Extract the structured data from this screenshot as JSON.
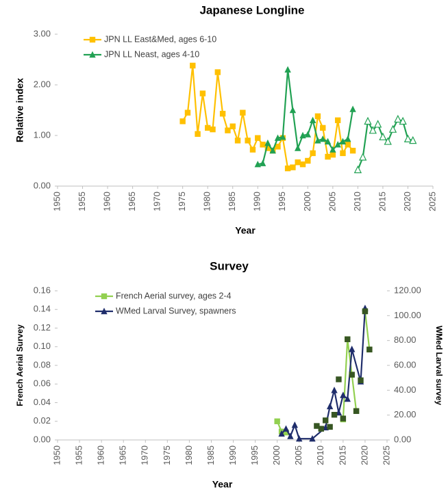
{
  "chart_data": [
    {
      "type": "line",
      "title": "Japanese Longline",
      "xlabel": "Year",
      "ylabel": "Relative index",
      "xlim": [
        1950,
        2025
      ],
      "xticks": [
        1950,
        1955,
        1960,
        1965,
        1970,
        1975,
        1980,
        1985,
        1990,
        1995,
        2000,
        2005,
        2010,
        2015,
        2020,
        2025
      ],
      "ylim": [
        0,
        3
      ],
      "yticks": [
        {
          "value": 0,
          "label": "0.00"
        },
        {
          "value": 1,
          "label": "1.00"
        },
        {
          "value": 2,
          "label": "2.00"
        },
        {
          "value": 3,
          "label": "3.00"
        }
      ],
      "legend": "upper left",
      "series": [
        {
          "name": "JPN LL East&Med, ages 6-10",
          "color": "#ffc000",
          "marker": "square",
          "x": [
            1975,
            1976,
            1977,
            1978,
            1979,
            1980,
            1981,
            1982,
            1983,
            1984,
            1985,
            1986,
            1987,
            1988,
            1989,
            1990,
            1991,
            1992,
            1993,
            1994,
            1995,
            1996,
            1997,
            1998,
            1999,
            2000,
            2001,
            2002,
            2003,
            2004,
            2005,
            2006,
            2007,
            2008,
            2009
          ],
          "values": [
            1.28,
            1.45,
            2.38,
            1.03,
            1.83,
            1.15,
            1.12,
            2.25,
            1.43,
            1.1,
            1.18,
            0.9,
            1.45,
            0.9,
            0.72,
            0.95,
            0.82,
            0.75,
            0.7,
            0.78,
            0.95,
            0.35,
            0.37,
            0.47,
            0.43,
            0.5,
            0.65,
            1.38,
            1.15,
            0.58,
            0.62,
            1.3,
            0.65,
            0.82,
            0.7
          ]
        },
        {
          "name": "JPN LL Neast, ages 4-10",
          "color": "#21a153",
          "marker": "triangle",
          "x": [
            1990,
            1991,
            1992,
            1993,
            1994,
            1995,
            1996,
            1997,
            1998,
            1999,
            2000,
            2001,
            2002,
            2003,
            2004,
            2005,
            2006,
            2007,
            2008,
            2009
          ],
          "values": [
            0.43,
            0.45,
            0.85,
            0.7,
            0.95,
            0.97,
            2.3,
            1.5,
            0.75,
            1.0,
            1.02,
            1.3,
            0.9,
            0.93,
            0.88,
            0.72,
            0.82,
            0.88,
            0.93,
            1.52
          ]
        },
        {
          "color": "#21a153",
          "marker": "triangle-open",
          "x": [
            2010,
            2011,
            2012,
            2013,
            2014,
            2015,
            2016,
            2017,
            2018,
            2019,
            2020,
            2021
          ],
          "values": [
            0.32,
            0.57,
            1.28,
            1.1,
            1.22,
            0.97,
            0.88,
            1.12,
            1.32,
            1.28,
            0.93,
            0.9
          ]
        }
      ]
    },
    {
      "type": "line",
      "title": "Survey",
      "xlabel": "Year",
      "ylabel": "French Aerial Survey",
      "y2label": "WMed Larval survey",
      "xlim": [
        1950,
        2025
      ],
      "xticks": [
        1950,
        1955,
        1960,
        1965,
        1970,
        1975,
        1980,
        1985,
        1990,
        1995,
        2000,
        2005,
        2010,
        2015,
        2020,
        2025
      ],
      "ylim": [
        0,
        0.16
      ],
      "yticks": [
        {
          "value": 0,
          "label": "0.00"
        },
        {
          "value": 0.02,
          "label": "0.02"
        },
        {
          "value": 0.04,
          "label": "0.04"
        },
        {
          "value": 0.06,
          "label": "0.06"
        },
        {
          "value": 0.08,
          "label": "0.08"
        },
        {
          "value": 0.1,
          "label": "0.10"
        },
        {
          "value": 0.12,
          "label": "0.12"
        },
        {
          "value": 0.14,
          "label": "0.14"
        },
        {
          "value": 0.16,
          "label": "0.16"
        }
      ],
      "y2lim": [
        0,
        120
      ],
      "y2ticks": [
        {
          "value": 0,
          "label": "0.00"
        },
        {
          "value": 20,
          "label": "20.00"
        },
        {
          "value": 40,
          "label": "40.00"
        },
        {
          "value": 60,
          "label": "60.00"
        },
        {
          "value": 80,
          "label": "80.00"
        },
        {
          "value": 100,
          "label": "100.00"
        },
        {
          "value": 120,
          "label": "120.00"
        }
      ],
      "legend": "upper left",
      "series": [
        {
          "name": "French Aerial survey, ages 2-4",
          "color": "#92d050",
          "marker": "square",
          "x": [
            2000,
            2001,
            2002,
            2003,
            2015,
            2016,
            2017,
            2018,
            2019,
            2020,
            2021
          ],
          "values": [
            0.02,
            0.009,
            0.008,
            null,
            0.022,
            0.108,
            0.07,
            0.031,
            null,
            0.138,
            0.097
          ]
        },
        {
          "name": "WMed Larval Survey, spawners",
          "color": "#1f2d6b",
          "marker": "triangle",
          "axis": "y2",
          "x": [
            2001,
            2002,
            2003,
            2004,
            2005,
            2008,
            2011,
            2012,
            2013,
            2014,
            2015,
            2016,
            2017,
            2019,
            2020
          ],
          "values": [
            5,
            9,
            3,
            12,
            1,
            1,
            10,
            27,
            40,
            22,
            36,
            33,
            73,
            47,
            106
          ]
        },
        {
          "color": "#375623",
          "marker": "square",
          "line": false,
          "x": [
            2009,
            2010,
            2011,
            2012,
            2013,
            2014,
            2015,
            2016,
            2017,
            2018,
            2019,
            2020,
            2021
          ],
          "values": [
            0.015,
            0.012,
            0.021,
            0.014,
            0.027,
            0.065,
            0.023,
            0.108,
            0.07,
            0.031,
            0.064,
            0.138,
            0.097
          ]
        }
      ]
    }
  ]
}
